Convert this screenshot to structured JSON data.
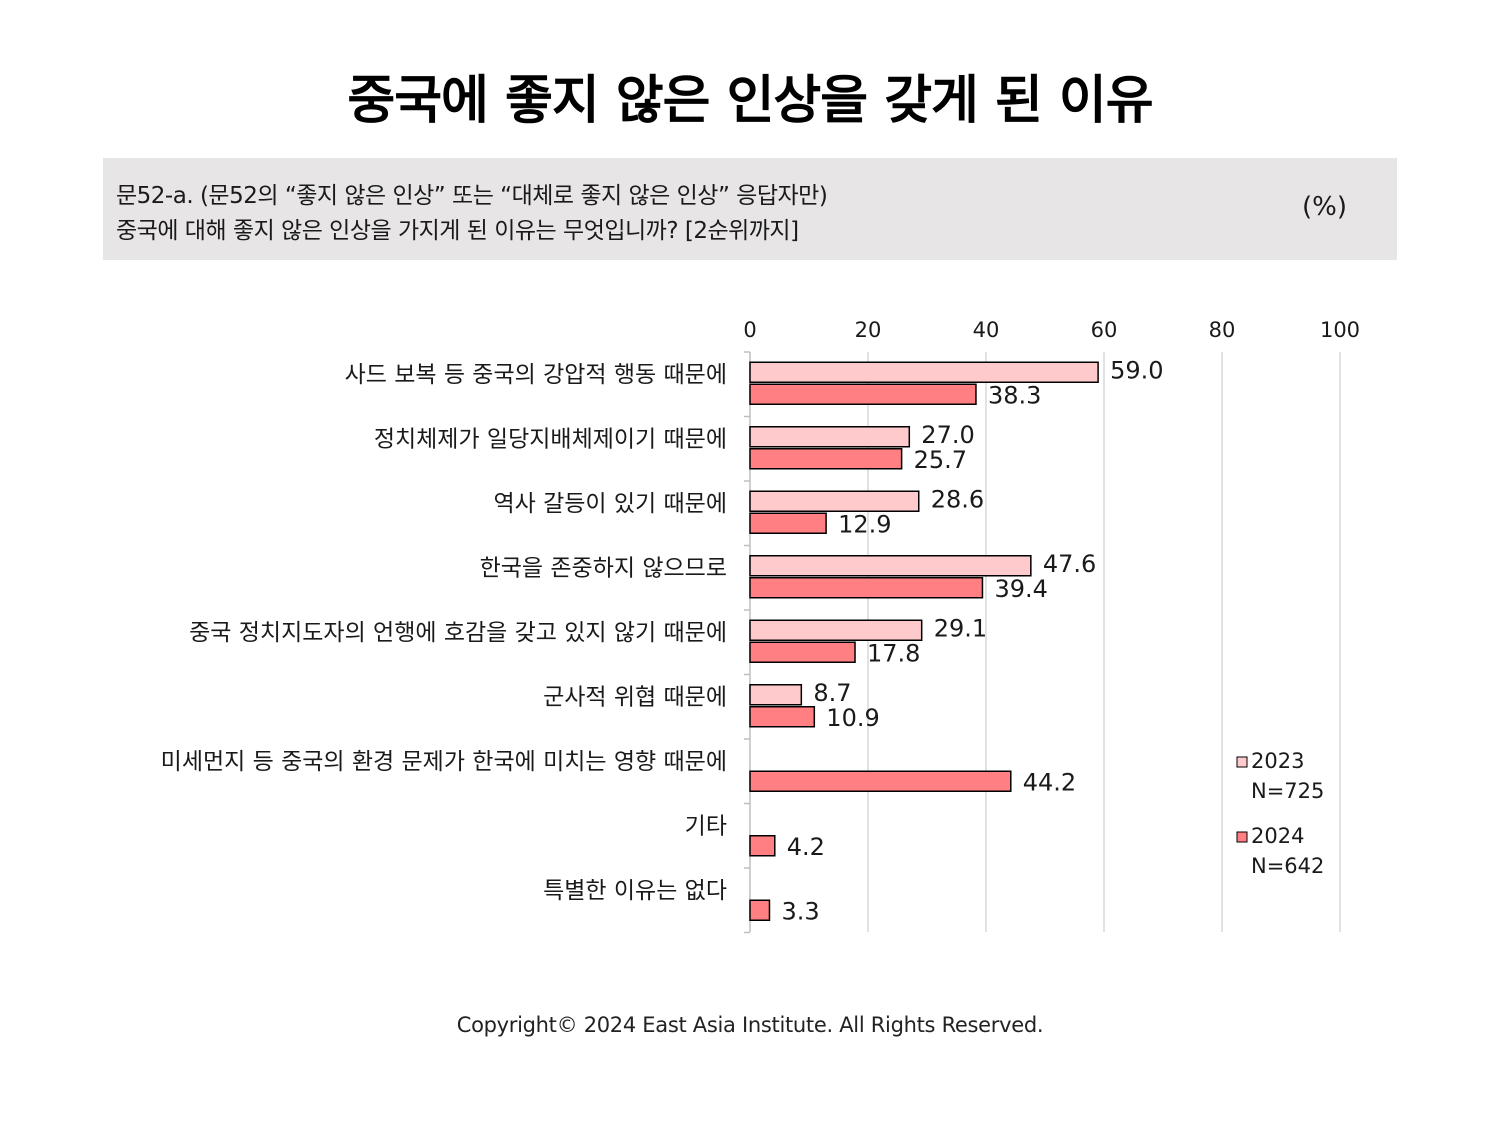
{
  "title": "중국에 좋지 않은 인상을 갖게 된 이유",
  "question": {
    "line1": "문52-a. (문52의 “좋지 않은 인상” 또는 “대체로 좋지 않은 인상” 응답자만)",
    "line2": "중국에 대해 좋지 않은 인상을 가지게 된 이유는 무엇입니까? [2순위까지]",
    "unit": "(%)"
  },
  "colors": {
    "series_2023": "#ffcacc",
    "series_2024": "#ff7f82",
    "bar_border": "#000000",
    "grid": "#d9d9d9"
  },
  "chart_data": {
    "type": "bar",
    "orientation": "horizontal",
    "categories": [
      "사드 보복 등 중국의 강압적 행동 때문에",
      "정치체제가 일당지배체제이기 때문에",
      "역사 갈등이 있기 때문에",
      "한국을 존중하지 않으므로",
      "중국 정치지도자의 언행에 호감을 갖고 있지 않기 때문에",
      "군사적 위협 때문에",
      "미세먼지 등 중국의 환경 문제가 한국에 미치는 영향 때문에",
      "기타",
      "특별한 이유는 없다"
    ],
    "series": [
      {
        "name": "2023",
        "sublabel": "N=725",
        "values": [
          59.0,
          27.0,
          28.6,
          47.6,
          29.1,
          8.7,
          null,
          null,
          null
        ],
        "labels": [
          "59.0",
          "27.0",
          "28.6",
          "47.6",
          "29.1",
          "8.7",
          "",
          "",
          ""
        ]
      },
      {
        "name": "2024",
        "sublabel": "N=642",
        "values": [
          38.3,
          25.7,
          12.9,
          39.4,
          17.8,
          10.9,
          44.2,
          4.2,
          3.3
        ],
        "labels": [
          "38.3",
          "25.7",
          "12.9",
          "39.4",
          "17.8",
          "10.9",
          "44.2",
          "4.2",
          "3.3"
        ]
      }
    ],
    "xlim": [
      0,
      100
    ],
    "xticks": [
      "0",
      "20",
      "40",
      "60",
      "80",
      "100"
    ],
    "tick_position": "top",
    "grid": true,
    "legend_position": "right"
  },
  "footer": "Copyright© 2024 East Asia Institute. All Rights Reserved."
}
